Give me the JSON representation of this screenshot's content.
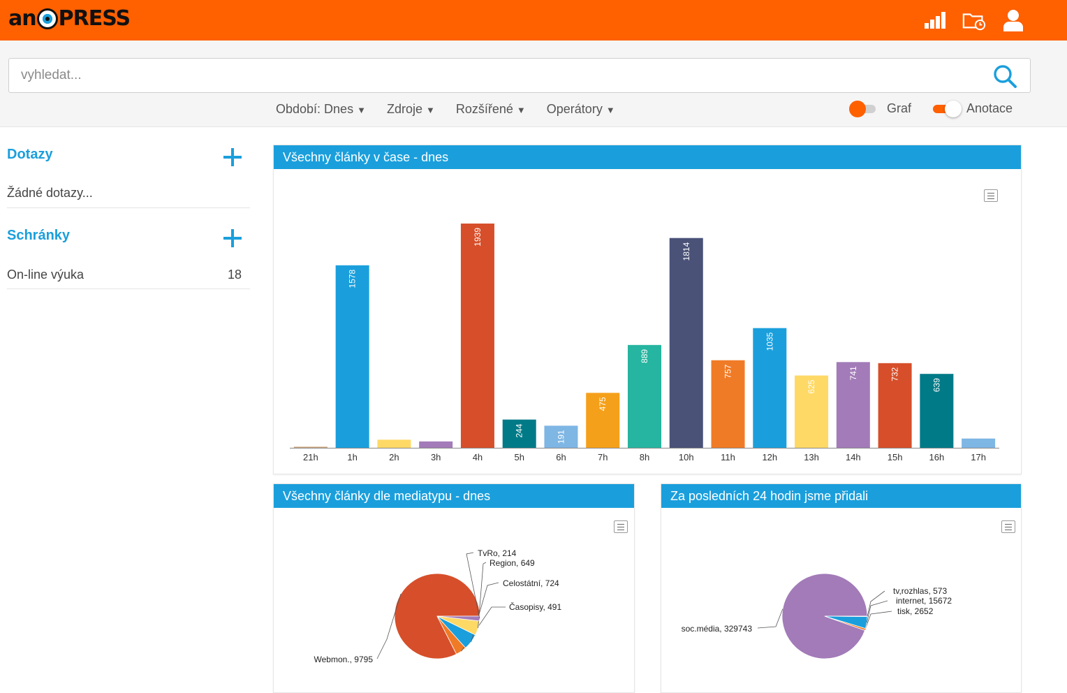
{
  "app": {
    "logo_text_left": "an",
    "logo_text_right": "PRESS"
  },
  "topbar": {
    "icons": [
      "signal-bars-icon",
      "folder-clock-icon",
      "user-icon"
    ]
  },
  "search": {
    "placeholder": "vyhledat...",
    "value": ""
  },
  "filters": [
    {
      "label": "Období: Dnes"
    },
    {
      "label": "Zdroje"
    },
    {
      "label": "Rozšířené"
    },
    {
      "label": "Operátory"
    }
  ],
  "toggles": {
    "graf": {
      "label": "Graf",
      "on": false
    },
    "anotace": {
      "label": "Anotace",
      "on": true
    }
  },
  "sidebar": {
    "queries": {
      "title": "Dotazy",
      "empty": "Žádné dotazy..."
    },
    "boxes": {
      "title": "Schránky",
      "items": [
        {
          "label": "On-line výuka",
          "count": "18"
        }
      ]
    }
  },
  "colors": {
    "brand": "#ff6000",
    "accent": "#1a9fdc"
  },
  "panels": {
    "bar_title": "Všechny články v čase - dnes",
    "media_title": "Všechny články dle mediatypu - dnes",
    "last24_title": "Za posledních 24 hodin jsme přidali"
  },
  "chart_data": [
    {
      "type": "bar",
      "categories": [
        "21h",
        "1h",
        "2h",
        "3h",
        "4h",
        "5h",
        "6h",
        "7h",
        "8h",
        "10h",
        "11h",
        "12h",
        "13h",
        "14h",
        "15h",
        "16h",
        "17h"
      ],
      "values": [
        6,
        1578,
        70,
        55,
        1939,
        244,
        191,
        475,
        889,
        1814,
        757,
        1035,
        625,
        741,
        732,
        639,
        80
      ],
      "labels": [
        "",
        "1578",
        "",
        "",
        "1939",
        "244",
        "191",
        "475",
        "889",
        "1814",
        "757",
        "1035",
        "625",
        "741",
        "732",
        "639",
        ""
      ],
      "colors": [
        "#c8a27a",
        "#1a9fdc",
        "#ffd966",
        "#a27bb8",
        "#d64f2a",
        "#007a87",
        "#7eb6e4",
        "#f5a01a",
        "#26b5a0",
        "#4a5278",
        "#f07b26",
        "#1a9fdc",
        "#ffd966",
        "#a27bb8",
        "#d64f2a",
        "#007a87",
        "#7eb6e4"
      ],
      "ylim": [
        0,
        1939
      ]
    },
    {
      "type": "pie",
      "slices": [
        {
          "name": "Webmon.",
          "value": 9795,
          "label": "Webmon., 9795",
          "color": "#d64f2a"
        },
        {
          "name": "Časopisy",
          "value": 491,
          "label": "Časopisy, 491",
          "color": "#f07b26"
        },
        {
          "name": "Celostátní",
          "value": 724,
          "label": "Celostátní, 724",
          "color": "#1a9fdc"
        },
        {
          "name": "Region",
          "value": 649,
          "label": "Region, 649",
          "color": "#ffd966"
        },
        {
          "name": "TvRo",
          "value": 214,
          "label": "TvRo, 214",
          "color": "#a27bb8"
        }
      ]
    },
    {
      "type": "pie",
      "slices": [
        {
          "name": "soc.média",
          "value": 329743,
          "label": "soc.média, 329743",
          "color": "#a27bb8"
        },
        {
          "name": "tisk",
          "value": 2652,
          "label": "tisk, 2652",
          "color": "#f07b26"
        },
        {
          "name": "internet",
          "value": 15672,
          "label": "internet, 15672",
          "color": "#1a9fdc"
        },
        {
          "name": "tv,rozhlas",
          "value": 573,
          "label": "tv,rozhlas, 573",
          "color": "#26b5a0"
        }
      ]
    }
  ]
}
